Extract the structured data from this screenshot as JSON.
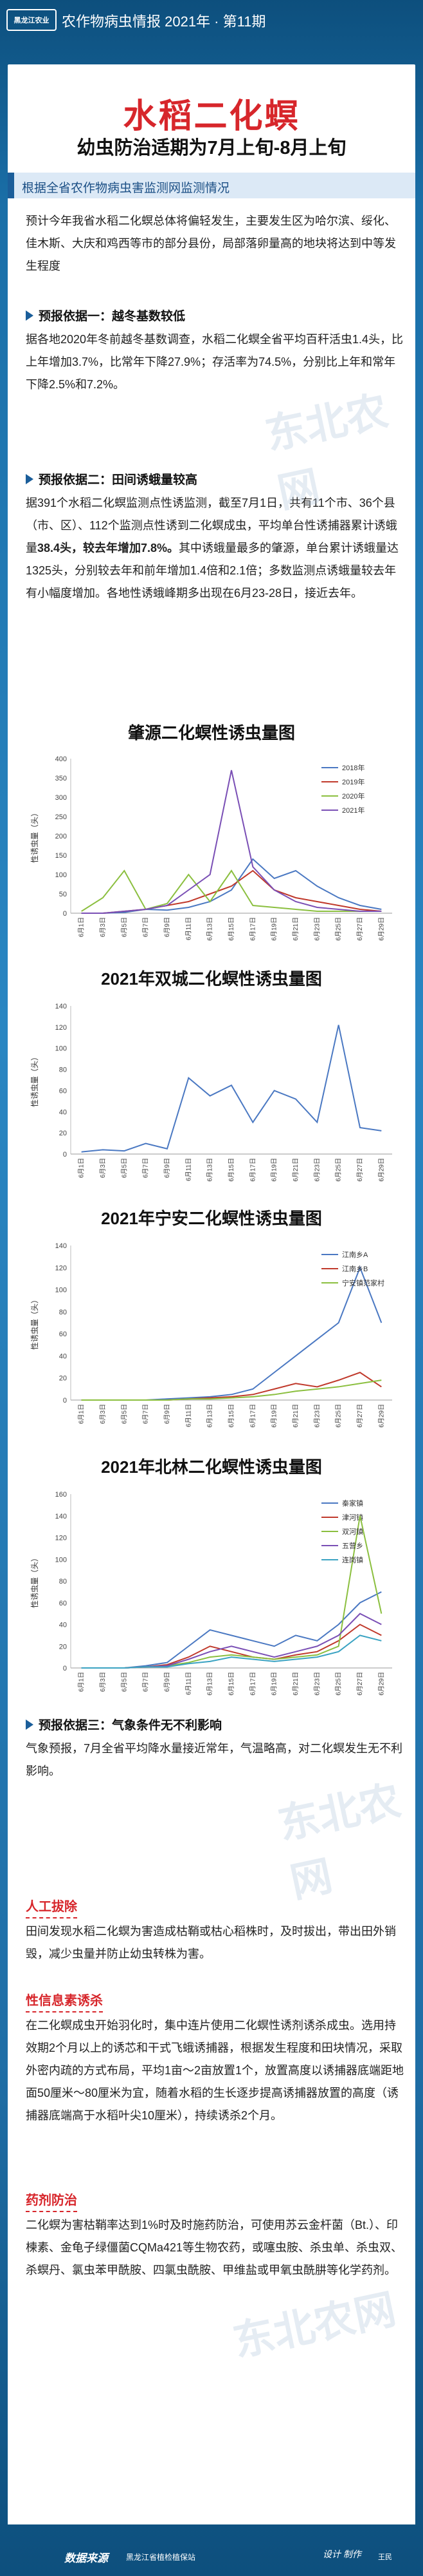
{
  "header": {
    "logo_text": "黑龙江农业",
    "banner": "农作物病虫情报   2021年 · 第11期"
  },
  "title": {
    "main": "水稻二化螟",
    "sub": "幼虫防治适期为7月上旬-8月上旬"
  },
  "section1": {
    "heading": "根据全省农作物病虫害监测网监测情况",
    "intro": "预计今年我省水稻二化螟总体将偏轻发生，主要发生区为哈尔滨、绥化、佳木斯、大庆和鸡西等市的部分县份，局部落卵量高的地块将达到中等发生程度",
    "basis1_title": "预报依据一：越冬基数较低",
    "basis1_text": "据各地2020年冬前越冬基数调查，水稻二化螟全省平均百秆活虫1.4头，比上年增加3.7%，比常年下降27.9%；存活率为74.5%，分别比上年和常年下降2.5%和7.2%。",
    "basis2_title": "预报依据二：田间诱蛾量较高",
    "basis2_text_a": "据391个水稻二化螟监测点性诱监测，截至7月1日，共有11个市、36个县（市、区）、112个监测点性诱到二化螟成虫，平均单台性诱捕器累计诱蛾量",
    "basis2_bold": "38.4头，较去年增加7.8%。",
    "basis2_text_b": "其中诱蛾量最多的肇源，单台累计诱蛾量达1325头，分别较去年和前年增加1.4倍和2.1倍；多数监测点诱蛾量较去年有小幅度增加。各地性诱蛾峰期多出现在6月23-28日，接近去年。",
    "basis3_title": "预报依据三：气象条件无不利影响",
    "basis3_text": "气象预报，7月全省平均降水量接近常年，气温略高，对二化螟发生无不利影响。"
  },
  "chart_data": [
    {
      "type": "line",
      "title": "肇源二化螟性诱虫量图",
      "ylabel": "性诱虫量（头）",
      "ylim": [
        0,
        400
      ],
      "yticks": [
        0,
        50,
        100,
        150,
        200,
        250,
        300,
        350,
        400
      ],
      "categories": [
        "6月1日",
        "6月3日",
        "6月5日",
        "6月7日",
        "6月9日",
        "6月11日",
        "6月13日",
        "6月15日",
        "6月17日",
        "6月19日",
        "6月21日",
        "6月23日",
        "6月25日",
        "6月27日",
        "6月29日"
      ],
      "series": [
        {
          "name": "2018年",
          "color": "#4a78c2",
          "values": [
            0,
            0,
            2,
            10,
            8,
            15,
            30,
            60,
            140,
            90,
            110,
            70,
            40,
            20,
            10
          ]
        },
        {
          "name": "2019年",
          "color": "#c0392b",
          "values": [
            0,
            0,
            5,
            10,
            20,
            30,
            50,
            70,
            110,
            60,
            40,
            30,
            20,
            10,
            5
          ]
        },
        {
          "name": "2020年",
          "color": "#8bbf3f",
          "values": [
            5,
            40,
            110,
            10,
            25,
            100,
            30,
            110,
            20,
            15,
            10,
            5,
            5,
            5,
            5
          ]
        },
        {
          "name": "2021年",
          "color": "#7a4fb5",
          "values": [
            0,
            0,
            5,
            10,
            20,
            60,
            100,
            370,
            120,
            60,
            30,
            15,
            10,
            5,
            5
          ]
        }
      ]
    },
    {
      "type": "line",
      "title": "2021年双城二化螟性诱虫量图",
      "ylabel": "性诱虫量（头）",
      "ylim": [
        0,
        140
      ],
      "yticks": [
        0,
        20,
        40,
        60,
        80,
        100,
        120,
        140
      ],
      "categories": [
        "6月1日",
        "6月3日",
        "6月5日",
        "6月7日",
        "6月9日",
        "6月11日",
        "6月13日",
        "6月15日",
        "6月17日",
        "6月19日",
        "6月21日",
        "6月23日",
        "6月25日",
        "6月27日",
        "6月29日"
      ],
      "series": [
        {
          "name": "",
          "color": "#4a78c2",
          "values": [
            2,
            4,
            3,
            10,
            5,
            72,
            55,
            65,
            30,
            60,
            52,
            30,
            122,
            25,
            22
          ]
        }
      ]
    },
    {
      "type": "line",
      "title": "2021年宁安二化螟性诱虫量图",
      "ylabel": "性诱虫量（头）",
      "ylim": [
        0,
        140
      ],
      "yticks": [
        0,
        20,
        40,
        60,
        80,
        100,
        120,
        140
      ],
      "categories": [
        "6月1日",
        "6月3日",
        "6月5日",
        "6月7日",
        "6月9日",
        "6月11日",
        "6月13日",
        "6月15日",
        "6月17日",
        "6月19日",
        "6月21日",
        "6月23日",
        "6月25日",
        "6月27日",
        "6月29日"
      ],
      "series": [
        {
          "name": "江南乡A",
          "color": "#4a78c2",
          "values": [
            0,
            0,
            0,
            0,
            1,
            2,
            3,
            5,
            10,
            25,
            40,
            55,
            70,
            120,
            70
          ]
        },
        {
          "name": "江南乡B",
          "color": "#c0392b",
          "values": [
            0,
            0,
            0,
            0,
            0,
            1,
            2,
            3,
            5,
            10,
            15,
            12,
            18,
            25,
            12
          ]
        },
        {
          "name": "宁安镇范家村",
          "color": "#8bbf3f",
          "values": [
            0,
            0,
            0,
            0,
            0,
            1,
            1,
            2,
            3,
            5,
            8,
            10,
            12,
            15,
            18
          ]
        }
      ]
    },
    {
      "type": "line",
      "title": "2021年北林二化螟性诱虫量图",
      "ylabel": "性诱虫量（头）",
      "ylim": [
        0,
        160
      ],
      "yticks": [
        0,
        20,
        40,
        60,
        80,
        100,
        120,
        140,
        160
      ],
      "categories": [
        "6月1日",
        "6月3日",
        "6月5日",
        "6月7日",
        "6月9日",
        "6月11日",
        "6月13日",
        "6月15日",
        "6月17日",
        "6月19日",
        "6月21日",
        "6月23日",
        "6月25日",
        "6月27日",
        "6月29日"
      ],
      "series": [
        {
          "name": "秦家镇",
          "color": "#4a78c2",
          "values": [
            0,
            0,
            0,
            2,
            5,
            20,
            35,
            30,
            25,
            20,
            30,
            25,
            40,
            60,
            70
          ]
        },
        {
          "name": "津河镇",
          "color": "#c0392b",
          "values": [
            0,
            0,
            0,
            1,
            3,
            10,
            20,
            15,
            10,
            8,
            12,
            15,
            25,
            40,
            30
          ]
        },
        {
          "name": "双河镇",
          "color": "#8bbf3f",
          "values": [
            0,
            0,
            0,
            1,
            2,
            5,
            10,
            12,
            10,
            8,
            10,
            12,
            20,
            140,
            50
          ]
        },
        {
          "name": "五营乡",
          "color": "#7a4fb5",
          "values": [
            0,
            0,
            0,
            1,
            2,
            8,
            15,
            20,
            15,
            10,
            15,
            20,
            30,
            50,
            40
          ]
        },
        {
          "name": "连岗镇",
          "color": "#3aa3c2",
          "values": [
            0,
            0,
            0,
            1,
            1,
            4,
            6,
            10,
            8,
            6,
            8,
            10,
            15,
            30,
            25
          ]
        }
      ]
    }
  ],
  "advice": {
    "heading": "防治建议",
    "a_title": "人工拔除",
    "a_text": "田间发现水稻二化螟为害造成枯鞘或枯心稻株时，及时拔出，带出田外销毁，减少虫量并防止幼虫转株为害。",
    "b_title": "性信息素诱杀",
    "b_text": "在二化螟成虫开始羽化时，集中连片使用二化螟性诱剂诱杀成虫。选用持效期2个月以上的诱芯和干式飞蛾诱捕器，根据发生程度和田块情况，采取外密内疏的方式布局，平均1亩～2亩放置1个，放置高度以诱捕器底端距地面50厘米～80厘米为宜，随着水稻的生长逐步提高诱捕器放置的高度（诱捕器底端高于水稻叶尖10厘米），持续诱杀2个月。",
    "c_title": "药剂防治",
    "c_text": "二化螟为害枯鞘率达到1%时及时施药防治，可使用苏云金杆菌（Bt.）、印楝素、金龟子绿僵菌CQMa421等生物农药，或噻虫胺、杀虫单、杀虫双、杀螟丹、氯虫苯甲酰胺、四氯虫酰胺、甲维盐或甲氧虫酰肼等化学药剂。"
  },
  "footer": {
    "source_label": "数据来源",
    "source_org": "黑龙江省植检植保站",
    "design_label": "设计 制作",
    "design_org": "王民"
  },
  "watermark": "东北农网"
}
